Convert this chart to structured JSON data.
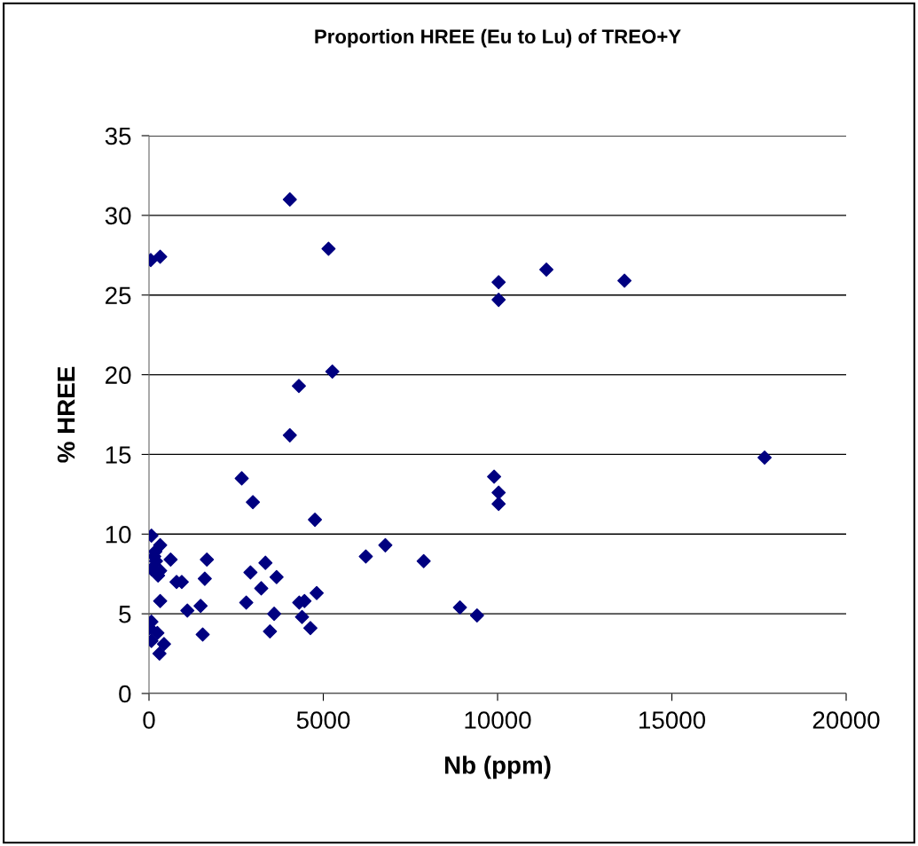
{
  "chart_data": {
    "type": "scatter",
    "title": "Proportion HREE (Eu to Lu) of TREO+Y",
    "xlabel": "Nb (ppm)",
    "ylabel": "% HREE",
    "x": [
      50,
      320,
      4040,
      5150,
      5260,
      4300,
      4040,
      2660,
      2980,
      4760,
      9900,
      10030,
      10030,
      6220,
      6780,
      7880,
      8920,
      9410,
      2910,
      3340,
      3660,
      3220,
      2790,
      3590,
      3470,
      4390,
      4310,
      4460,
      4810,
      4630,
      70,
      320,
      180,
      150,
      200,
      620,
      1660,
      70,
      320,
      260,
      790,
      940,
      1600,
      320,
      1100,
      1480,
      70,
      20,
      240,
      70,
      430,
      300,
      1540,
      10030,
      10030,
      11400,
      13640,
      17660
    ],
    "series": [
      {
        "color": "#000080",
        "values": [
          27.2,
          27.4,
          31.0,
          27.9,
          20.2,
          19.3,
          16.2,
          13.5,
          12.0,
          10.9,
          13.6,
          12.6,
          11.9,
          8.6,
          9.3,
          8.3,
          5.4,
          4.9,
          7.6,
          8.2,
          7.3,
          6.6,
          5.7,
          5.0,
          3.9,
          4.8,
          5.7,
          5.8,
          6.3,
          4.1,
          9.9,
          9.3,
          8.9,
          8.6,
          8.3,
          8.4,
          8.4,
          7.8,
          7.7,
          7.4,
          7.0,
          7.0,
          7.2,
          5.8,
          5.2,
          5.5,
          4.5,
          4.1,
          3.8,
          3.3,
          3.1,
          2.5,
          3.7,
          25.8,
          24.7,
          26.6,
          25.9,
          14.8
        ]
      }
    ],
    "xlim": [
      0,
      20000
    ],
    "xticks": [
      0,
      5000,
      10000,
      15000,
      20000
    ],
    "ylim": [
      0,
      35
    ],
    "yticks": [
      0,
      5,
      10,
      15,
      20,
      25,
      30,
      35
    ],
    "grid": "y",
    "marker": "diamond",
    "legend": false
  }
}
